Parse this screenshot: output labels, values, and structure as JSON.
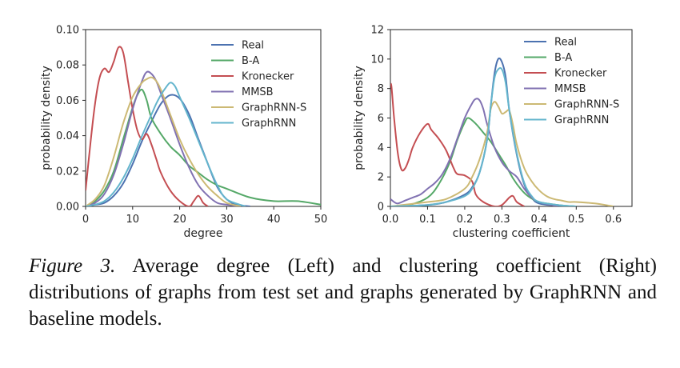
{
  "caption": {
    "label": "Figure 3.",
    "text": " Average degree (Left) and clustering coefficient (Right) distributions of graphs from test set and graphs generated by GraphRNN and baseline models."
  },
  "chart_data": [
    {
      "type": "line",
      "xlabel": "degree",
      "ylabel": "probability density",
      "xlim": [
        0,
        50
      ],
      "ylim": [
        0,
        0.1
      ],
      "xticks": [
        "0",
        "10",
        "20",
        "30",
        "40",
        "50"
      ],
      "yticks": [
        "0.00",
        "0.02",
        "0.04",
        "0.06",
        "0.08",
        "0.10"
      ],
      "legend": "top-right",
      "series": [
        {
          "name": "Real",
          "color": "#4c72b0",
          "x": [
            0,
            2,
            4,
            6,
            8,
            10,
            12,
            14,
            16,
            18,
            20,
            22,
            24,
            26,
            28,
            30,
            32,
            35
          ],
          "y": [
            0,
            0.001,
            0.002,
            0.006,
            0.013,
            0.024,
            0.037,
            0.048,
            0.058,
            0.063,
            0.061,
            0.052,
            0.038,
            0.024,
            0.011,
            0.004,
            0.001,
            0
          ]
        },
        {
          "name": "B-A",
          "color": "#55a868",
          "x": [
            0,
            2,
            4,
            6,
            8,
            10,
            11,
            12,
            13,
            14,
            16,
            18,
            20,
            22,
            24,
            26,
            28,
            30,
            35,
            40,
            45,
            50
          ],
          "y": [
            0,
            0.003,
            0.009,
            0.02,
            0.038,
            0.056,
            0.063,
            0.066,
            0.06,
            0.05,
            0.041,
            0.034,
            0.029,
            0.023,
            0.019,
            0.015,
            0.012,
            0.01,
            0.005,
            0.003,
            0.003,
            0.001
          ]
        },
        {
          "name": "Kronecker",
          "color": "#c44e52",
          "x": [
            0,
            1,
            2,
            3,
            4,
            5,
            6,
            7,
            8,
            9,
            10,
            11,
            12,
            13,
            14,
            15,
            16,
            18,
            20,
            22,
            23,
            24,
            25,
            26
          ],
          "y": [
            0.009,
            0.035,
            0.058,
            0.073,
            0.078,
            0.076,
            0.082,
            0.09,
            0.087,
            0.071,
            0.055,
            0.043,
            0.038,
            0.041,
            0.035,
            0.027,
            0.019,
            0.009,
            0.003,
            0,
            0.003,
            0.006,
            0.002,
            0
          ]
        },
        {
          "name": "MMSB",
          "color": "#8172b2",
          "x": [
            0,
            2,
            4,
            6,
            8,
            10,
            12,
            13,
            14,
            15,
            16,
            18,
            20,
            22,
            24,
            26,
            28,
            30,
            33
          ],
          "y": [
            0,
            0.002,
            0.007,
            0.018,
            0.035,
            0.055,
            0.071,
            0.076,
            0.075,
            0.071,
            0.064,
            0.05,
            0.035,
            0.022,
            0.012,
            0.006,
            0.002,
            0.001,
            0
          ]
        },
        {
          "name": "GraphRNN-S",
          "color": "#ccb974",
          "x": [
            0,
            2,
            4,
            6,
            8,
            10,
            12,
            13,
            14,
            15,
            16,
            18,
            20,
            22,
            24,
            26,
            28,
            30,
            33
          ],
          "y": [
            0,
            0.004,
            0.012,
            0.028,
            0.047,
            0.062,
            0.07,
            0.072,
            0.073,
            0.071,
            0.066,
            0.052,
            0.038,
            0.027,
            0.018,
            0.011,
            0.006,
            0.002,
            0
          ]
        },
        {
          "name": "GraphRNN",
          "color": "#64b5cd",
          "x": [
            0,
            2,
            4,
            6,
            8,
            10,
            12,
            14,
            15,
            16,
            17,
            18,
            19,
            20,
            22,
            24,
            26,
            28,
            30,
            34
          ],
          "y": [
            0,
            0.001,
            0.003,
            0.008,
            0.016,
            0.027,
            0.04,
            0.052,
            0.058,
            0.063,
            0.067,
            0.07,
            0.068,
            0.062,
            0.05,
            0.037,
            0.024,
            0.012,
            0.004,
            0
          ]
        }
      ]
    },
    {
      "type": "line",
      "xlabel": "clustering coefficient",
      "ylabel": "probability density",
      "xlim": [
        0,
        0.65
      ],
      "ylim": [
        0,
        12
      ],
      "xticks": [
        "0.0",
        "0.1",
        "0.2",
        "0.3",
        "0.4",
        "0.5",
        "0.6"
      ],
      "yticks": [
        "0",
        "2",
        "4",
        "6",
        "8",
        "10",
        "12"
      ],
      "legend": "top-right",
      "series": [
        {
          "name": "Real",
          "color": "#4c72b0",
          "x": [
            0,
            0.1,
            0.15,
            0.2,
            0.22,
            0.24,
            0.26,
            0.27,
            0.28,
            0.29,
            0.3,
            0.31,
            0.32,
            0.34,
            0.36,
            0.38,
            0.4,
            0.45,
            0.5
          ],
          "y": [
            0,
            0.1,
            0.3,
            0.8,
            1.3,
            2.3,
            4.5,
            6.8,
            9,
            10,
            9.8,
            8.8,
            6.5,
            3.5,
            1.5,
            0.6,
            0.2,
            0.05,
            0
          ]
        },
        {
          "name": "B-A",
          "color": "#55a868",
          "x": [
            0,
            0.05,
            0.1,
            0.13,
            0.16,
            0.18,
            0.2,
            0.21,
            0.23,
            0.25,
            0.27,
            0.29,
            0.31,
            0.33,
            0.35,
            0.37,
            0.4,
            0.45,
            0.5
          ],
          "y": [
            0,
            0.1,
            0.6,
            1.5,
            3,
            4.5,
            5.7,
            6,
            5.6,
            5,
            4.4,
            3.6,
            2.8,
            1.9,
            1.2,
            0.7,
            0.3,
            0.1,
            0
          ]
        },
        {
          "name": "Kronecker",
          "color": "#c44e52",
          "x": [
            0,
            0.003,
            0.01,
            0.02,
            0.03,
            0.04,
            0.05,
            0.06,
            0.08,
            0.1,
            0.11,
            0.13,
            0.15,
            0.17,
            0.18,
            0.2,
            0.22,
            0.23,
            0.25,
            0.28,
            0.3,
            0.32,
            0.33,
            0.34,
            0.36
          ],
          "y": [
            8.3,
            8.1,
            6,
            3.6,
            2.5,
            2.6,
            3.2,
            4,
            5,
            5.6,
            5.2,
            4.6,
            3.8,
            2.6,
            2.2,
            2.1,
            1.7,
            0.8,
            0.3,
            0,
            0.1,
            0.6,
            0.7,
            0.3,
            0
          ]
        },
        {
          "name": "MMSB",
          "color": "#8172b2",
          "x": [
            0,
            0.01,
            0.02,
            0.04,
            0.06,
            0.08,
            0.1,
            0.12,
            0.14,
            0.16,
            0.18,
            0.2,
            0.22,
            0.23,
            0.24,
            0.25,
            0.26,
            0.28,
            0.3,
            0.32,
            0.34,
            0.36,
            0.38,
            0.4,
            0.45
          ],
          "y": [
            0.5,
            0.3,
            0.2,
            0.4,
            0.6,
            0.8,
            1.2,
            1.6,
            2.2,
            3.2,
            4.6,
            6,
            7,
            7.3,
            7.2,
            6.6,
            5.6,
            4,
            3,
            2.4,
            2,
            1.2,
            0.6,
            0.3,
            0
          ]
        },
        {
          "name": "GraphRNN-S",
          "color": "#ccb974",
          "x": [
            0,
            0.1,
            0.15,
            0.2,
            0.22,
            0.24,
            0.26,
            0.27,
            0.28,
            0.29,
            0.3,
            0.31,
            0.32,
            0.33,
            0.34,
            0.36,
            0.38,
            0.4,
            0.42,
            0.44,
            0.46,
            0.48,
            0.5,
            0.55,
            0.6
          ],
          "y": [
            0,
            0.3,
            0.5,
            1.2,
            2,
            3.2,
            5,
            6.6,
            7.1,
            6.8,
            6.3,
            6.4,
            6.5,
            5.5,
            4.2,
            2.6,
            1.7,
            1.1,
            0.7,
            0.5,
            0.4,
            0.3,
            0.3,
            0.2,
            0
          ]
        },
        {
          "name": "GraphRNN",
          "color": "#64b5cd",
          "x": [
            0,
            0.1,
            0.15,
            0.2,
            0.22,
            0.24,
            0.26,
            0.27,
            0.28,
            0.29,
            0.3,
            0.31,
            0.32,
            0.34,
            0.36,
            0.38,
            0.4,
            0.45,
            0.5
          ],
          "y": [
            0,
            0.1,
            0.3,
            0.7,
            1.2,
            2.3,
            4.5,
            6.8,
            8.7,
            9.3,
            9.3,
            8.4,
            6.5,
            3.6,
            1.6,
            0.7,
            0.3,
            0.1,
            0
          ]
        }
      ]
    }
  ]
}
